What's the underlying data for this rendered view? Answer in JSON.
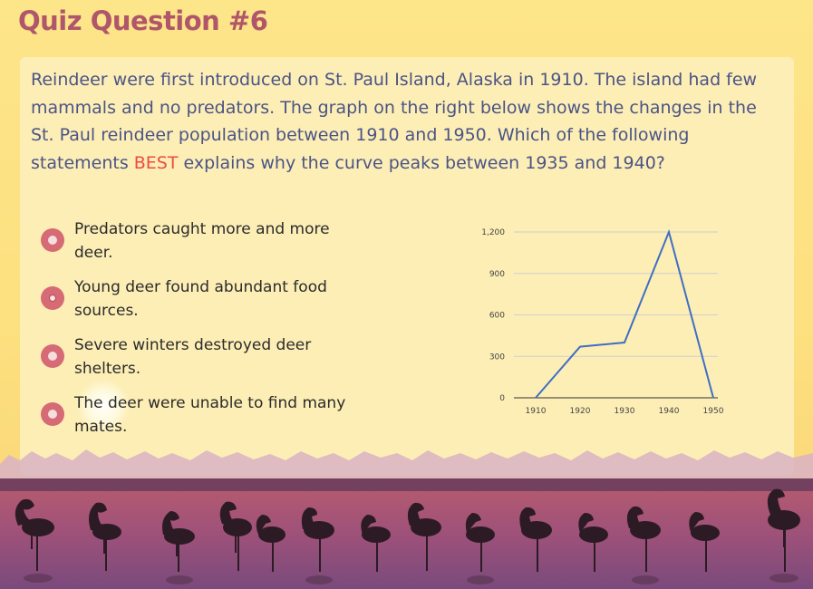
{
  "page": {
    "title": "Quiz Question #6"
  },
  "question": {
    "text_before": "Reindeer were first introduced on St. Paul Island, Alaska in 1910. The island had few mammals and no predators. The graph on the right below shows the changes in the St. Paul reindeer population between 1910 and 1950. Which of the following statements ",
    "highlight": "BEST",
    "text_after": " explains why the curve peaks between 1935 and 1940?"
  },
  "answers": [
    {
      "label": "Predators caught more and more deer."
    },
    {
      "label": "Young deer found abundant food sources."
    },
    {
      "label": "Severe winters destroyed deer shelters."
    },
    {
      "label": "The deer were unable to find many mates."
    }
  ],
  "colors": {
    "title": "#b0566a",
    "question": "#4a5486",
    "highlight": "#ee4b3e",
    "radio": "#d66a75",
    "line": "#3f6fc4",
    "background": "#fde07f",
    "card": "#fdeeb6"
  },
  "chart_data": {
    "type": "line",
    "categories": [
      "1910",
      "1920",
      "1930",
      "1940",
      "1950"
    ],
    "x": [
      1910,
      1920,
      1930,
      1940,
      1950
    ],
    "values": [
      0,
      370,
      400,
      1200,
      0
    ],
    "y_ticks": [
      "0",
      "300",
      "600",
      "900",
      "1,200"
    ],
    "ylim": [
      0,
      1200
    ],
    "grid": true,
    "legend": "none"
  }
}
